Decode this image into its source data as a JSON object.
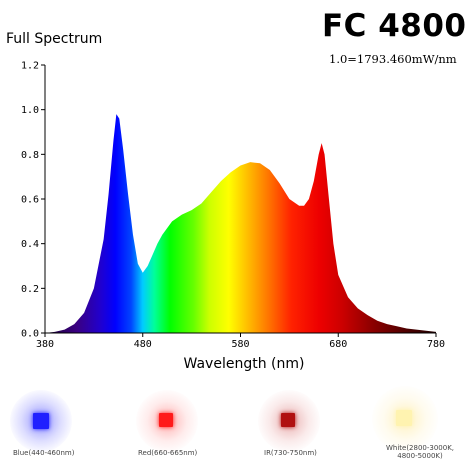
{
  "header": {
    "product": "FC 4800",
    "subtitle": "Full Spectrum",
    "note": "1.0=1793.460mW/nm"
  },
  "chart_data": {
    "type": "area",
    "xlabel": "Wavelength (nm)",
    "ylabel": "",
    "xlim": [
      380,
      780
    ],
    "ylim": [
      0,
      1.2
    ],
    "x_ticks": [
      380,
      480,
      580,
      680,
      780
    ],
    "y_ticks": [
      0.0,
      0.2,
      0.4,
      0.6,
      0.8,
      1.0,
      1.2
    ],
    "x_tick_labels": [
      "380",
      "480",
      "580",
      "680",
      "780"
    ],
    "y_tick_labels": [
      "0.0",
      "0.2",
      "0.4",
      "0.6",
      "0.8",
      "1.0",
      "1.2"
    ],
    "grid": false,
    "fill": "wavelength-colored spectrum",
    "x": [
      380,
      390,
      400,
      410,
      420,
      430,
      440,
      445,
      450,
      453,
      456,
      460,
      465,
      470,
      475,
      480,
      485,
      490,
      495,
      500,
      510,
      520,
      530,
      540,
      550,
      560,
      570,
      580,
      590,
      600,
      610,
      620,
      630,
      640,
      645,
      650,
      655,
      660,
      663,
      666,
      670,
      675,
      680,
      690,
      700,
      710,
      720,
      730,
      740,
      750,
      760,
      770,
      780
    ],
    "values": [
      0.0,
      0.005,
      0.015,
      0.04,
      0.09,
      0.2,
      0.42,
      0.62,
      0.86,
      0.98,
      0.96,
      0.82,
      0.62,
      0.44,
      0.31,
      0.27,
      0.3,
      0.35,
      0.4,
      0.44,
      0.5,
      0.53,
      0.55,
      0.58,
      0.63,
      0.68,
      0.72,
      0.75,
      0.765,
      0.76,
      0.73,
      0.67,
      0.6,
      0.57,
      0.57,
      0.6,
      0.68,
      0.8,
      0.85,
      0.8,
      0.62,
      0.4,
      0.26,
      0.16,
      0.11,
      0.08,
      0.055,
      0.04,
      0.03,
      0.02,
      0.015,
      0.01,
      0.005
    ]
  },
  "leds": [
    {
      "label": "Blue(440-460nm)",
      "color": "#2020ff"
    },
    {
      "label": "Red(660-665nm)",
      "color": "#ff1a1a"
    },
    {
      "label": "IR(730-750nm)",
      "color": "#b01010"
    },
    {
      "label": "White(2800-3000K, 4800-5000K)",
      "color": "#fff3b0"
    }
  ]
}
